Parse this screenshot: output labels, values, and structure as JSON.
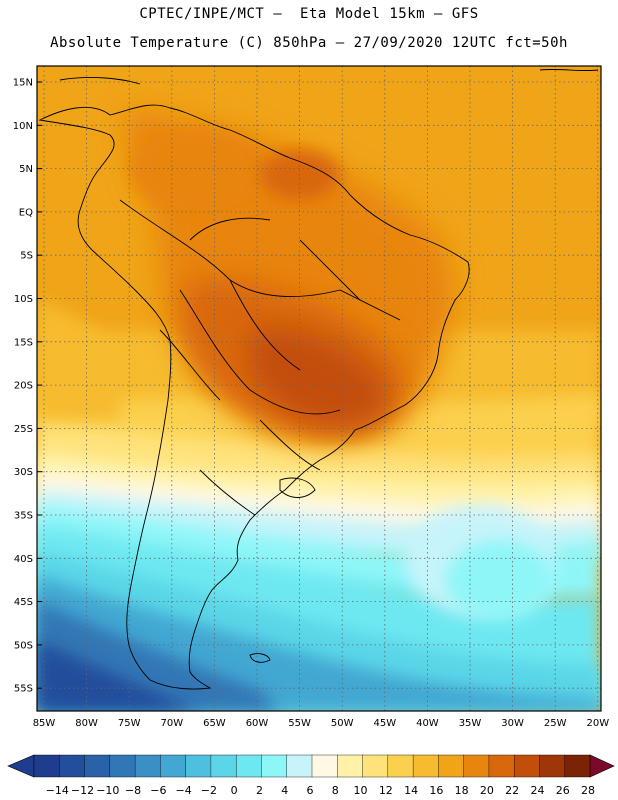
{
  "header": {
    "line1": "CPTEC/INPE/MCT —  Eta Model 15km — GFS",
    "line2": "Absolute Temperature (C) 850hPa — 27/09/2020 12UTC fct=50h"
  },
  "map": {
    "lat_labels": [
      "15N",
      "10N",
      "5N",
      "EQ",
      "5S",
      "10S",
      "15S",
      "20S",
      "25S",
      "30S",
      "35S",
      "40S",
      "45S",
      "50S",
      "55S"
    ],
    "lon_labels": [
      "85W",
      "80W",
      "75W",
      "70W",
      "65W",
      "60W",
      "55W",
      "50W",
      "45W",
      "40W",
      "35W",
      "30W",
      "25W",
      "20W"
    ]
  },
  "colorbar": {
    "labels": [
      "-14",
      "-12",
      "-10",
      "-8",
      "-6",
      "-4",
      "-2",
      "0",
      "2",
      "4",
      "6",
      "8",
      "10",
      "12",
      "14",
      "16",
      "18",
      "20",
      "22",
      "24",
      "26",
      "28"
    ],
    "colors": [
      "#1f3d8f",
      "#234e9c",
      "#2a62a9",
      "#3277b5",
      "#3a8fc4",
      "#42a7d2",
      "#4dc0df",
      "#5ad6e8",
      "#6ee8f0",
      "#8ff6f8",
      "#c7f4fb",
      "#fff8e4",
      "#fff2a8",
      "#ffe27a",
      "#fbd04e",
      "#f6bb2e",
      "#f0a418",
      "#e8850f",
      "#d9670b",
      "#c24e0a",
      "#9f3608",
      "#7a2405"
    ]
  }
}
